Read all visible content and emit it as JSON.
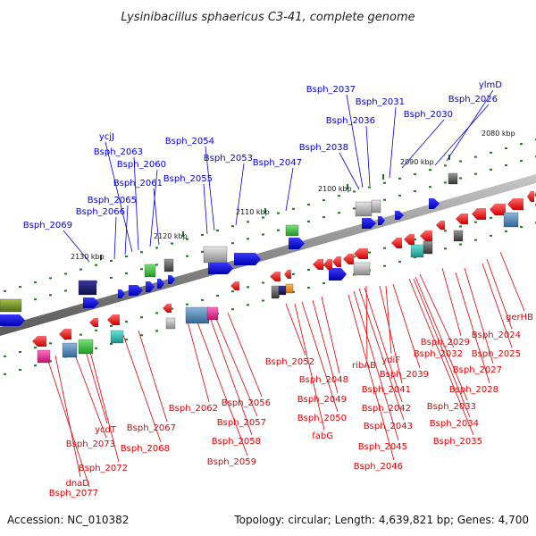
{
  "title": "Lysinibacillus sphaericus C3-41, complete genome",
  "footer": {
    "accession": "Accession: NC_010382",
    "summary": "Topology: circular; Length: 4,639,821 bp; Genes: 4,700"
  },
  "colors": {
    "forward_strand": "#0000dd",
    "reverse_strand": "#dd0000",
    "backbone": "#8c8c8c",
    "tick": "#1a7a1a",
    "feature_gray": "#9a9a9a",
    "feature_dark_gray": "#555555",
    "feature_navy": "#1a1a6e",
    "feature_green": "#33bb33",
    "feature_olive": "#6b8e23",
    "feature_steel_blue": "#4682b4",
    "feature_magenta": "#e0218a",
    "feature_orange": "#ff8c00",
    "feature_teal": "#20b2aa"
  },
  "tick_labels": [
    "2080 kbp",
    "2090 kbp",
    "2100 kbp",
    "2110 kbp",
    "2120 kbp",
    "2130 kbp"
  ],
  "forward_genes": [
    "ylmD",
    "Bsph_2026",
    "Bsph_2030",
    "Bsph_2031",
    "Bsph_2037",
    "Bsph_2036",
    "Bsph_2038",
    "Bsph_2047",
    "Bsph_2053",
    "Bsph_2054",
    "Bsph_2055",
    "ycjJ",
    "Bsph_2063",
    "Bsph_2060",
    "Bsph_2061",
    "Bsph_2065",
    "Bsph_2066",
    "Bsph_2069"
  ],
  "reverse_genes": [
    "gerHB",
    "Bsph_2024",
    "Bsph_2025",
    "Bsph_2029",
    "Bsph_2027",
    "Bsph_2032",
    "Bsph_2028",
    "Bsph_2033",
    "Bsph_2034",
    "Bsph_2035",
    "Bsph_2039",
    "ydiF",
    "Bsph_2041",
    "ribAB",
    "Bsph_2042",
    "Bsph_2043",
    "Bsph_2045",
    "Bsph_2046",
    "Bsph_2048",
    "Bsph_2052",
    "Bsph_2049",
    "Bsph_2050",
    "fabG",
    "Bsph_2056",
    "Bsph_2062",
    "Bsph_2057",
    "Bsph_2058",
    "Bsph_2059",
    "Bsph_2067",
    "Bsph_2068",
    "ycdT",
    "Bsph_2073",
    "Bsph_2072",
    "dnaD",
    "Bsph_2077"
  ]
}
